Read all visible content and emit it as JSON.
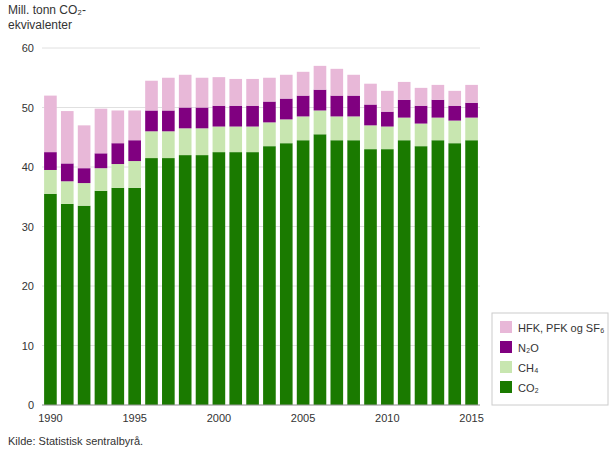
{
  "chart_data": {
    "type": "bar",
    "stacked": true,
    "ylabel": "Mill. tonn CO₂-\nekvivalenter",
    "source": "Kilde: Statistisk sentralbyrå.",
    "categories": [
      "1990",
      null,
      null,
      null,
      null,
      "1995",
      null,
      null,
      null,
      null,
      "2000",
      null,
      null,
      null,
      null,
      "2005",
      null,
      null,
      null,
      null,
      "2010",
      null,
      null,
      null,
      null,
      "2015"
    ],
    "series": [
      {
        "name": "CO₂",
        "color": "#1a7a00",
        "values": [
          35.5,
          33.8,
          33.5,
          36.0,
          36.5,
          36.5,
          41.5,
          41.5,
          42.0,
          42.0,
          42.5,
          42.5,
          42.5,
          43.5,
          44.0,
          44.5,
          45.5,
          44.5,
          44.5,
          43.0,
          43.0,
          44.5,
          43.5,
          44.5,
          44.0,
          44.5
        ]
      },
      {
        "name": "CH₄",
        "color": "#c8e6b0",
        "values": [
          4.0,
          3.8,
          3.8,
          3.8,
          4.0,
          4.5,
          4.5,
          4.5,
          4.5,
          4.5,
          4.3,
          4.3,
          4.3,
          4.0,
          4.0,
          4.0,
          4.0,
          4.0,
          4.0,
          4.0,
          3.8,
          3.8,
          3.8,
          3.8,
          3.8,
          3.8
        ]
      },
      {
        "name": "N₂O",
        "color": "#800080",
        "values": [
          3.0,
          3.0,
          2.5,
          2.5,
          3.5,
          3.5,
          3.5,
          3.5,
          3.5,
          3.5,
          3.5,
          3.5,
          3.5,
          3.5,
          3.5,
          3.5,
          3.5,
          3.5,
          3.5,
          3.5,
          2.5,
          3.0,
          3.0,
          3.0,
          2.5,
          2.5
        ]
      },
      {
        "name": "HFK, PFK og SF₆",
        "color": "#e8b8d8",
        "values": [
          9.5,
          8.8,
          7.2,
          7.5,
          5.5,
          5.0,
          5.0,
          5.5,
          5.5,
          5.0,
          4.8,
          4.5,
          4.5,
          4.0,
          4.0,
          4.0,
          4.0,
          4.5,
          3.5,
          3.5,
          3.5,
          3.0,
          3.0,
          2.5,
          2.5,
          3.0
        ]
      }
    ],
    "ylim": [
      0,
      60
    ],
    "yticks": [
      0,
      10,
      20,
      30,
      40,
      50,
      60
    ],
    "grid": true,
    "legend": "lower right"
  }
}
